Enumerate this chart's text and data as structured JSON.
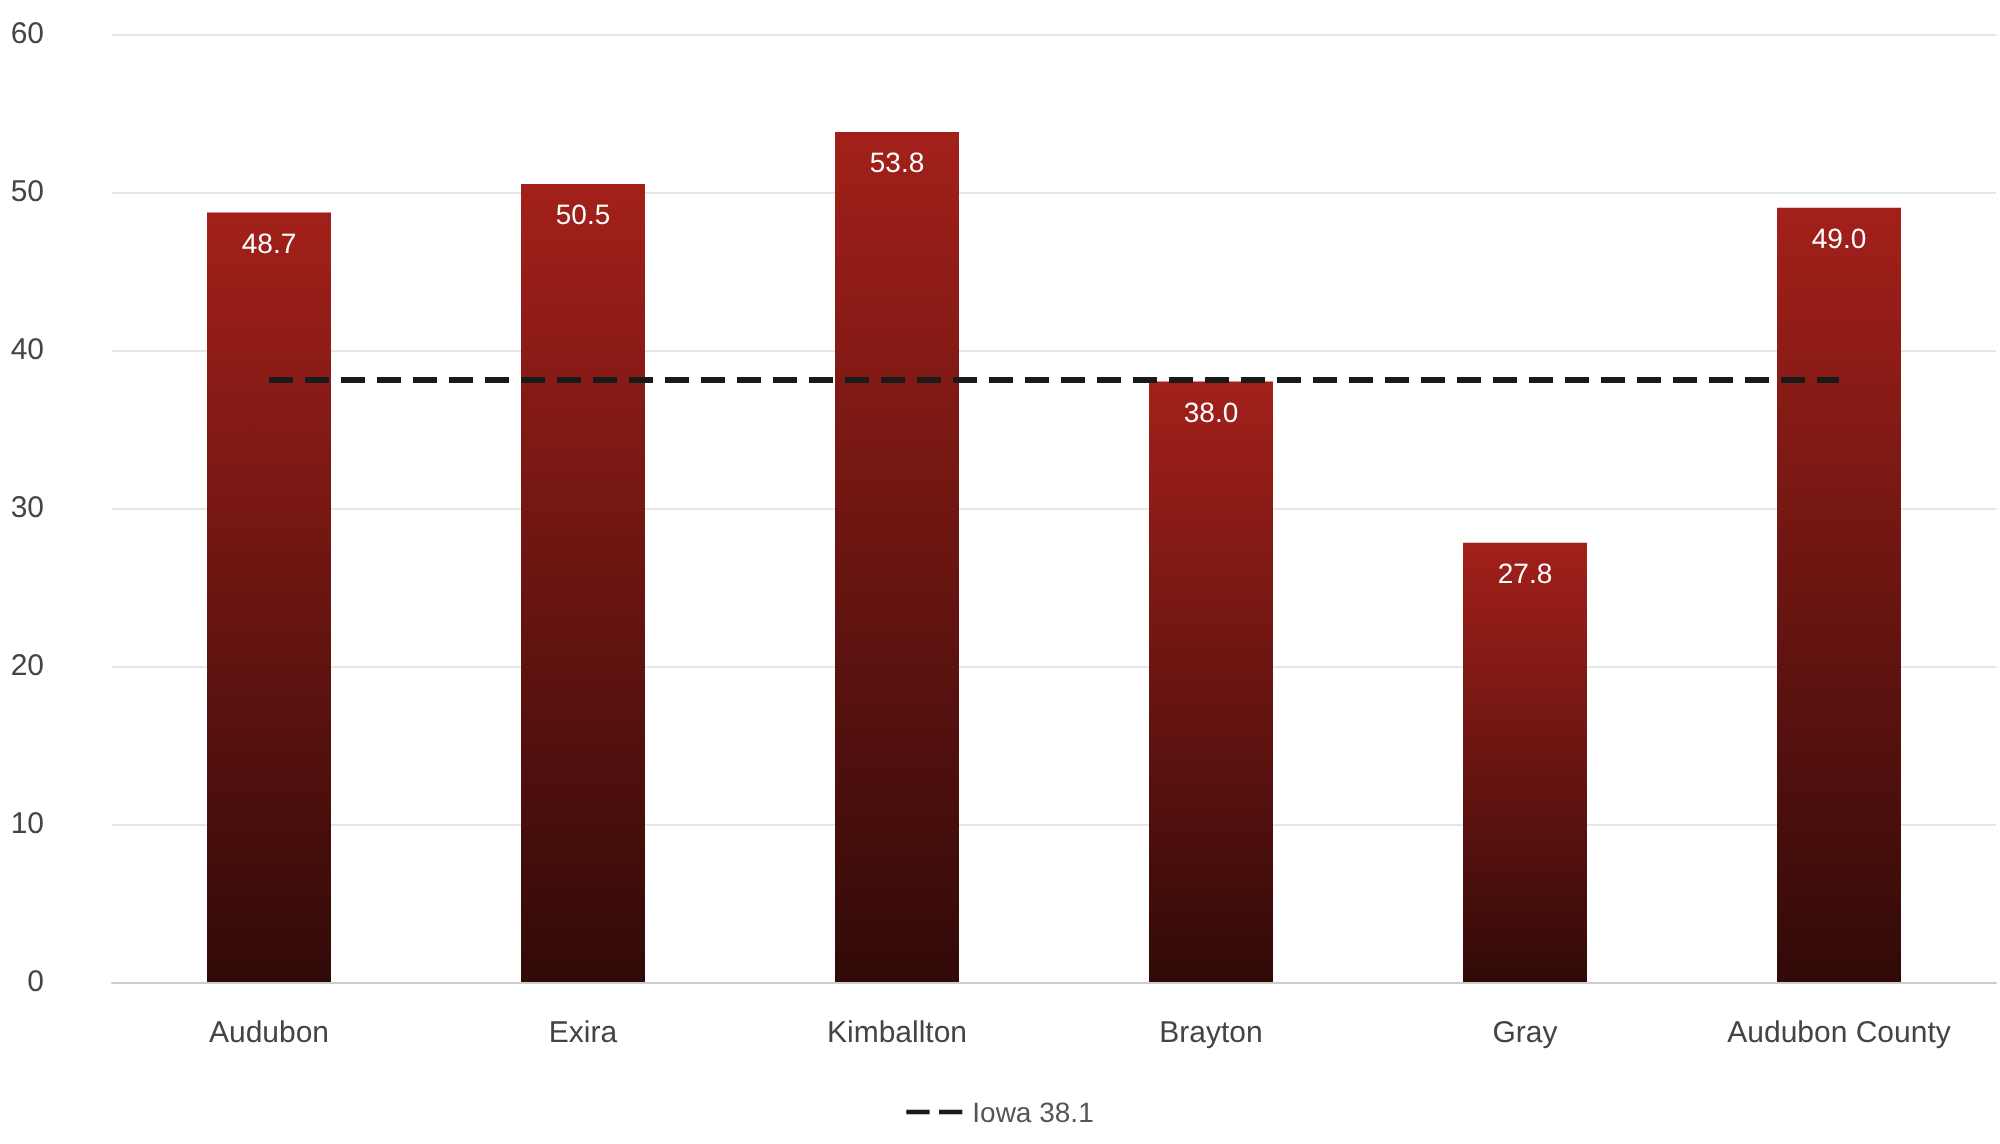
{
  "chart_data": {
    "type": "bar",
    "categories": [
      "Audubon",
      "Exira",
      "Kimballton",
      "Brayton",
      "Gray",
      "Audubon County"
    ],
    "values": [
      48.7,
      50.5,
      53.8,
      38.0,
      27.8,
      49.0
    ],
    "value_labels": [
      "48.7",
      "50.5",
      "53.8",
      "38.0",
      "27.8",
      "49.0"
    ],
    "color": "#a3201a",
    "ylim": [
      0,
      60
    ],
    "yticks": [
      0,
      10,
      20,
      30,
      40,
      50,
      60
    ],
    "grid": "y",
    "legend": "bottom",
    "ref_lines": [
      {
        "axis": "y",
        "value": 38.1,
        "label": "Iowa 38.1",
        "color": "#1a1a1a",
        "line_style": "dashed"
      }
    ]
  }
}
